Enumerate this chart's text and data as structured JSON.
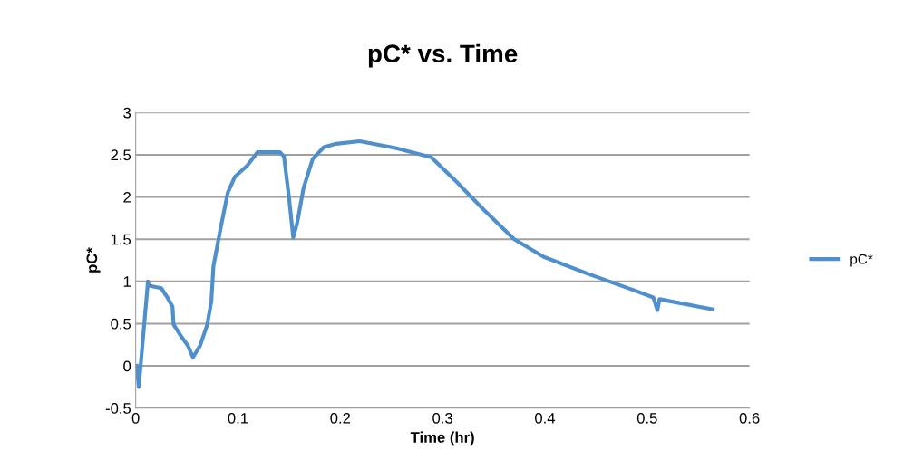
{
  "chart_data": {
    "type": "line",
    "title": "pC* vs. Time",
    "xlabel": "Time (hr)",
    "ylabel": "pC*",
    "xlim": [
      0,
      0.6
    ],
    "xticks": [
      0,
      0.1,
      0.2,
      0.3,
      0.4,
      0.5,
      0.6
    ],
    "ylim": [
      -0.5,
      3
    ],
    "yticks": [
      -0.5,
      0,
      0.5,
      1,
      1.5,
      2,
      2.5,
      3
    ],
    "grid": "y",
    "legend": "right",
    "marker": "none",
    "line_style": "solid",
    "series": [
      {
        "name": "pC*",
        "color": "#4f8fcc",
        "x": [
          0.001,
          0.003,
          0.012,
          0.013,
          0.025,
          0.031,
          0.036,
          0.037,
          0.045,
          0.051,
          0.056,
          0.063,
          0.07,
          0.074,
          0.076,
          0.083,
          0.09,
          0.097,
          0.109,
          0.119,
          0.141,
          0.145,
          0.15,
          0.154,
          0.158,
          0.164,
          0.173,
          0.184,
          0.196,
          0.219,
          0.254,
          0.289,
          0.312,
          0.341,
          0.37,
          0.399,
          0.442,
          0.486,
          0.506,
          0.51,
          0.512,
          0.529,
          0.564
        ],
        "values": [
          0,
          -0.25,
          1.0,
          0.95,
          0.92,
          0.81,
          0.7,
          0.49,
          0.34,
          0.24,
          0.1,
          0.24,
          0.49,
          0.77,
          1.18,
          1.63,
          2.05,
          2.24,
          2.37,
          2.53,
          2.53,
          2.48,
          1.98,
          1.52,
          1.7,
          2.1,
          2.45,
          2.59,
          2.63,
          2.66,
          2.58,
          2.47,
          2.2,
          1.84,
          1.5,
          1.29,
          1.09,
          0.9,
          0.81,
          0.66,
          0.79,
          0.75,
          0.67
        ]
      }
    ]
  }
}
